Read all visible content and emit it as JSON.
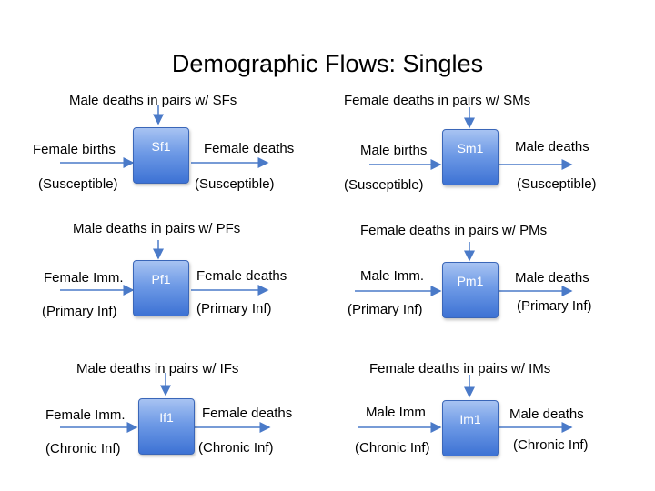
{
  "title": "Demographic Flows: Singles",
  "cells": [
    {
      "box": "Sf1",
      "top": "Male deaths in pairs w/ SFs",
      "in": "Female births",
      "in_sub": "(Susceptible)",
      "out": "Female deaths",
      "out_sub": "(Susceptible)"
    },
    {
      "box": "Sm1",
      "top": "Female deaths in pairs w/ SMs",
      "in": "Male births",
      "in_sub": "(Susceptible)",
      "out": "Male deaths",
      "out_sub": "(Susceptible)"
    },
    {
      "box": "Pf1",
      "top": "Male deaths in pairs w/ PFs",
      "in": "Female Imm.",
      "in_sub": "(Primary Inf)",
      "out": "Female deaths",
      "out_sub": "(Primary Inf)"
    },
    {
      "box": "Pm1",
      "top": "Female deaths in pairs w/ PMs",
      "in": "Male Imm.",
      "in_sub": "(Primary Inf)",
      "out": "Male deaths",
      "out_sub": "(Primary Inf)"
    },
    {
      "box": "If1",
      "top": "Male deaths in pairs w/ IFs",
      "in": "Female Imm.",
      "in_sub": "(Chronic Inf)",
      "out": "Female deaths",
      "out_sub": "(Chronic Inf)"
    },
    {
      "box": "Im1",
      "top": "Female deaths in pairs w/ IMs",
      "in": "Male Imm",
      "in_sub": "(Chronic Inf)",
      "out": "Male deaths",
      "out_sub": "(Chronic Inf)"
    }
  ],
  "colors": {
    "arrow": "#4a7ac8",
    "box_top": "#a7c3f2",
    "box_bottom": "#3d72d4"
  }
}
